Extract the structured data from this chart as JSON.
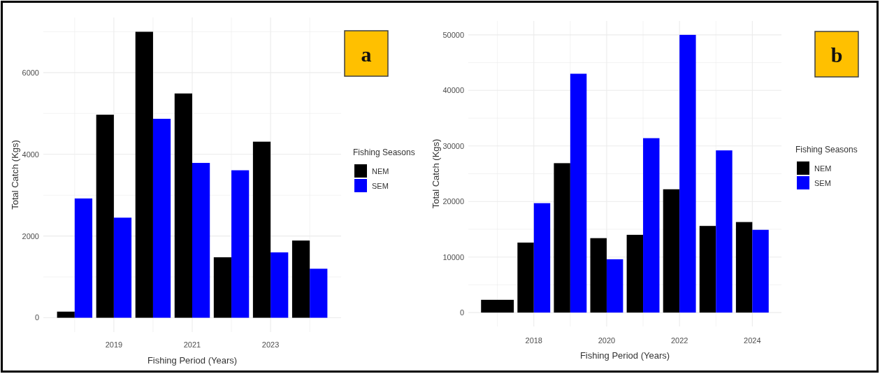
{
  "chart_data": [
    {
      "type": "bar",
      "xlabel": "Fishing Period (Years)",
      "ylabel": "Total Catch (Kgs)",
      "legend_title": "Fishing Seasons",
      "annotations": [
        "a"
      ],
      "x": [
        2018,
        2019,
        2020,
        2021,
        2022,
        2023,
        2024
      ],
      "xlim": [
        2017.2,
        2024.8
      ],
      "xticks": [
        {
          "value": 2018,
          "label": null
        },
        2019,
        {
          "value": 2020,
          "label": null
        },
        2021,
        {
          "value": 2022,
          "label": null
        },
        2023,
        {
          "value": 2024,
          "label": null
        }
      ],
      "ylim": [
        -350,
        7350
      ],
      "yticks": [
        0,
        {
          "value": 1000,
          "label": null
        },
        2000,
        {
          "value": 3000,
          "label": null
        },
        4000,
        {
          "value": 5000,
          "label": null
        },
        6000,
        {
          "value": 7000,
          "label": null
        }
      ],
      "series": [
        {
          "name": "NEM",
          "color": "#000000",
          "values": [
            150,
            4970,
            7000,
            5490,
            1480,
            4310,
            1890
          ]
        },
        {
          "name": "SEM",
          "color": "#0000ff",
          "values": [
            2920,
            2450,
            4870,
            3790,
            3610,
            1600,
            1200
          ]
        }
      ],
      "grid": true,
      "legend": "right"
    },
    {
      "type": "bar",
      "xlabel": "Fishing Period (Years)",
      "ylabel": "Total Catch (Kgs)",
      "legend_title": "Fishing Seasons",
      "annotations": [
        "b"
      ],
      "x": [
        2017,
        2018,
        2019,
        2020,
        2021,
        2022,
        2023,
        2024
      ],
      "xlim": [
        2016.2,
        2024.8
      ],
      "xticks": [
        {
          "value": 2017,
          "label": null
        },
        2018,
        {
          "value": 2019,
          "label": null
        },
        2020,
        {
          "value": 2021,
          "label": null
        },
        2022,
        {
          "value": 2023,
          "label": null
        },
        2024
      ],
      "ylim": [
        -2500,
        52500
      ],
      "yticks": [
        0,
        {
          "value": 5000,
          "label": null
        },
        10000,
        {
          "value": 15000,
          "label": null
        },
        20000,
        {
          "value": 25000,
          "label": null
        },
        30000,
        {
          "value": 35000,
          "label": null
        },
        40000,
        {
          "value": 45000,
          "label": null
        },
        50000
      ],
      "series": [
        {
          "name": "NEM",
          "color": "#000000",
          "values": [
            2300,
            12600,
            26900,
            13400,
            14000,
            22200,
            15600,
            16300
          ]
        },
        {
          "name": "SEM",
          "color": "#0000ff",
          "values": [
            null,
            19700,
            43000,
            9600,
            31400,
            50000,
            29200,
            14900
          ]
        }
      ],
      "grid": true,
      "legend": "right"
    }
  ]
}
